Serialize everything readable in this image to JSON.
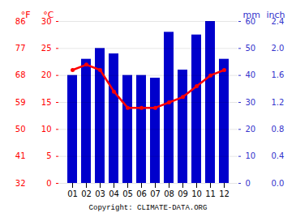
{
  "chart_data": {
    "type": "bar",
    "categories": [
      "01",
      "02",
      "03",
      "04",
      "05",
      "06",
      "07",
      "08",
      "09",
      "10",
      "11",
      "12"
    ],
    "series": [
      {
        "type": "bar",
        "axis": "y2",
        "color": "#0000cc",
        "values": [
          40,
          46,
          50,
          48,
          40,
          40,
          39,
          56,
          42,
          55,
          60,
          46
        ]
      },
      {
        "type": "line",
        "color": "#ff0000",
        "marker": "circle",
        "values": [
          21,
          22,
          21,
          17,
          14,
          14,
          14,
          15,
          16,
          18,
          20,
          21
        ]
      }
    ],
    "ylabel": "°C",
    "ylim": [
      0,
      30
    ],
    "yticks": [
      0,
      5,
      10,
      15,
      20,
      25,
      30
    ],
    "y_color": "#ff0000",
    "y2label": "mm",
    "y2lim": [
      0,
      60
    ],
    "y2ticks": [
      0,
      10,
      20,
      30,
      40,
      50,
      60
    ],
    "y2_color": "#3333cc",
    "y3label": "°F",
    "y3lim": [
      32,
      86
    ],
    "y3ticks": [
      32,
      41,
      50,
      59,
      68,
      77,
      86
    ],
    "y4label": "inch",
    "y4lim": [
      0,
      2.4
    ],
    "y4ticks": [
      {
        "value": 0,
        "label": "0.0"
      },
      0.4,
      0.8,
      1.2,
      1.6,
      {
        "value": 2,
        "label": "2.0"
      },
      2.4
    ],
    "grid": true,
    "annotations": [
      "Copyright: CLIMATE-DATA.ORG"
    ]
  }
}
